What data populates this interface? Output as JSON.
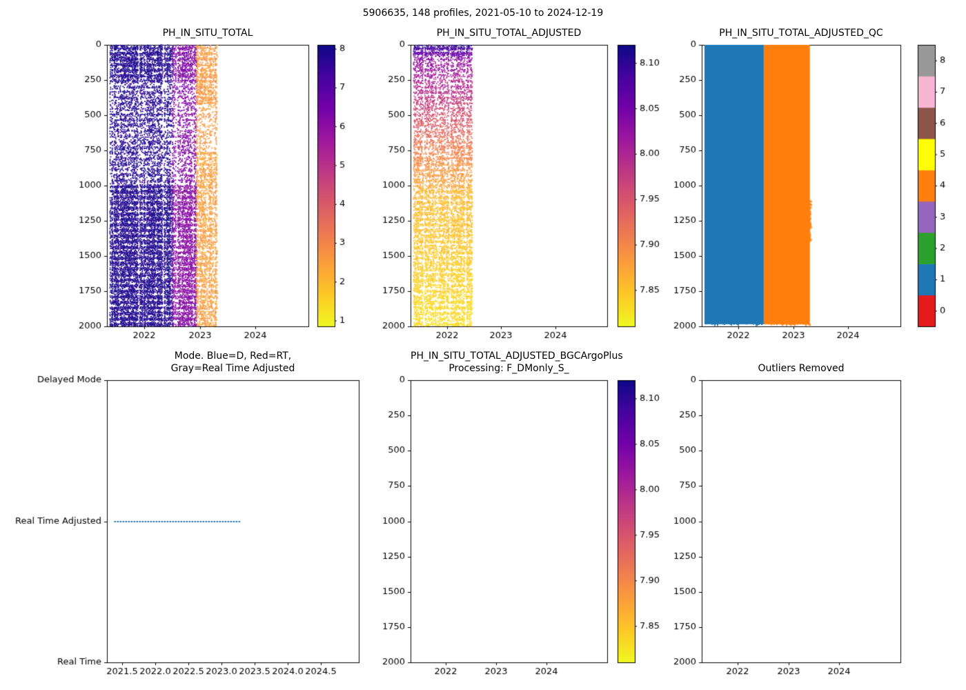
{
  "title": "5906635, 148 profiles, 2021-05-10 to 2024-12-19",
  "colors": {
    "background": "#ffffff",
    "axis": "#000000",
    "mode_line_blue": "#1f77b4"
  },
  "colormaps": {
    "plasma": [
      "#0d0887",
      "#46039f",
      "#7201a8",
      "#9c179e",
      "#bd3786",
      "#d8576b",
      "#ed7953",
      "#fb9f3a",
      "#fdca26",
      "#f0f921"
    ],
    "qc": [
      "#e41a1c",
      "#1f77b4",
      "#2ca02c",
      "#9467bd",
      "#ff7f0e",
      "#ffff00",
      "#8c564b",
      "#f7b6d2",
      "#999999"
    ]
  },
  "chart_data": [
    {
      "type": "scatter",
      "title": "PH_IN_SITU_TOTAL",
      "x_range": [
        2021.33,
        2024.95
      ],
      "x_ticks": [
        2022,
        2023,
        2024
      ],
      "x_tick_decimals": 0,
      "y_range": [
        0,
        2000
      ],
      "y_ticks": [
        0,
        250,
        500,
        750,
        1000,
        1250,
        1500,
        1750,
        2000
      ],
      "colorbar": {
        "kind": "gradient",
        "cmap": "plasma_r",
        "min": 0.85,
        "max": 8.1,
        "ticks": [
          1,
          2,
          3,
          4,
          5,
          6,
          7,
          8
        ],
        "decimals": 0
      },
      "profile_step_years": 0.0137,
      "depth_step_m": 10,
      "regions": [
        {
          "t0": 2021.38,
          "t1": 2022.5,
          "d0": 0,
          "d1": 260,
          "v_top": 7.85,
          "v_bot": 7.85,
          "noise": 0.35,
          "density": 0.82,
          "banded": true
        },
        {
          "t0": 2021.38,
          "t1": 2022.5,
          "d0": 260,
          "d1": 1000,
          "v_top": 7.8,
          "v_bot": 7.8,
          "noise": 0.4,
          "density": 0.5,
          "banded": true
        },
        {
          "t0": 2021.38,
          "t1": 2022.5,
          "d0": 1000,
          "d1": 2000,
          "v_top": 7.85,
          "v_bot": 7.85,
          "noise": 0.3,
          "density": 0.88,
          "banded": true
        },
        {
          "t0": 2022.5,
          "t1": 2022.93,
          "d0": 0,
          "d1": 260,
          "v_top": 6.2,
          "v_bot": 6.2,
          "noise": 0.5,
          "density": 0.75,
          "banded": true
        },
        {
          "t0": 2022.5,
          "t1": 2022.93,
          "d0": 260,
          "d1": 1000,
          "v_top": 6.2,
          "v_bot": 6.2,
          "noise": 0.5,
          "density": 0.42,
          "banded": true
        },
        {
          "t0": 2022.5,
          "t1": 2022.93,
          "d0": 1000,
          "d1": 2000,
          "v_top": 6.1,
          "v_bot": 6.1,
          "noise": 0.45,
          "density": 0.8,
          "banded": true
        },
        {
          "t0": 2022.93,
          "t1": 2023.3,
          "d0": 0,
          "d1": 420,
          "v_top": 2.6,
          "v_bot": 2.6,
          "noise": 0.55,
          "density": 0.72,
          "banded": true
        },
        {
          "t0": 2022.93,
          "t1": 2023.3,
          "d0": 420,
          "d1": 760,
          "v_top": 2.6,
          "v_bot": 2.6,
          "noise": 0.5,
          "density": 0.36,
          "banded": true
        },
        {
          "t0": 2022.93,
          "t1": 2023.3,
          "d0": 760,
          "d1": 2000,
          "v_top": 2.5,
          "v_bot": 2.5,
          "noise": 0.5,
          "density": 0.66,
          "banded": true
        }
      ]
    },
    {
      "type": "scatter",
      "title": "PH_IN_SITU_TOTAL_ADJUSTED",
      "x_range": [
        2021.33,
        2024.95
      ],
      "x_ticks": [
        2022,
        2023,
        2024
      ],
      "x_tick_decimals": 0,
      "y_range": [
        0,
        2000
      ],
      "y_ticks": [
        0,
        250,
        500,
        750,
        1000,
        1250,
        1500,
        1750,
        2000
      ],
      "colorbar": {
        "kind": "gradient",
        "cmap": "plasma_r",
        "min": 7.81,
        "max": 8.12,
        "ticks": [
          7.85,
          7.9,
          7.95,
          8.0,
          8.05,
          8.1
        ],
        "decimals": 2
      },
      "profile_step_years": 0.0137,
      "depth_step_m": 10,
      "regions": [
        {
          "t0": 2021.38,
          "t1": 2022.45,
          "d0": 0,
          "d1": 90,
          "v_top": 8.1,
          "v_bot": 8.04,
          "noise": 0.02,
          "density": 0.8,
          "banded": true
        },
        {
          "t0": 2021.38,
          "t1": 2022.45,
          "d0": 90,
          "d1": 420,
          "v_top": 8.03,
          "v_bot": 7.97,
          "noise": 0.025,
          "density": 0.5,
          "banded": true
        },
        {
          "t0": 2021.38,
          "t1": 2022.45,
          "d0": 420,
          "d1": 720,
          "v_top": 7.97,
          "v_bot": 7.91,
          "noise": 0.02,
          "density": 0.45,
          "banded": true
        },
        {
          "t0": 2021.38,
          "t1": 2022.45,
          "d0": 720,
          "d1": 1020,
          "v_top": 7.91,
          "v_bot": 7.87,
          "noise": 0.015,
          "density": 0.55,
          "banded": true
        },
        {
          "t0": 2021.38,
          "t1": 2022.45,
          "d0": 1020,
          "d1": 2000,
          "v_top": 7.86,
          "v_bot": 7.83,
          "noise": 0.012,
          "density": 0.62,
          "banded": true
        }
      ]
    },
    {
      "type": "scatter-qc",
      "title": "PH_IN_SITU_TOTAL_ADJUSTED_QC",
      "x_range": [
        2021.33,
        2024.95
      ],
      "x_ticks": [
        2022,
        2023,
        2024
      ],
      "x_tick_decimals": 0,
      "y_range": [
        0,
        2000
      ],
      "y_ticks": [
        0,
        250,
        500,
        750,
        1000,
        1250,
        1500,
        1750,
        2000
      ],
      "colorbar": {
        "kind": "discrete",
        "ticks": [
          0,
          1,
          2,
          3,
          4,
          5,
          6,
          7,
          8
        ]
      },
      "blocks": [
        {
          "t0": 2021.38,
          "t1": 2022.46,
          "d0": 0,
          "d1": 1985,
          "qc": 1,
          "ragged_bottom": true
        },
        {
          "t0": 2022.46,
          "t1": 2023.3,
          "d0": 0,
          "d1": 1985,
          "qc": 4,
          "ragged_bottom": true,
          "ragged_right": {
            "d0": 1100,
            "d1": 1400,
            "dt": 0.04
          }
        }
      ]
    },
    {
      "type": "categorical-line",
      "title": "Mode. Blue=D, Red=RT,\nGray=Real Time Adjusted",
      "x_range": [
        2021.27,
        2025.07
      ],
      "x_ticks": [
        2021.5,
        2022.0,
        2022.5,
        2023.0,
        2023.5,
        2024.0,
        2024.5
      ],
      "x_tick_decimals": 1,
      "y_categories": [
        "Delayed Mode",
        "Real Time Adjusted",
        "Real Time"
      ],
      "line": {
        "category_index": 1,
        "t0": 2021.38,
        "t1": 2023.28,
        "color": "#1f77b4"
      }
    },
    {
      "type": "scatter",
      "title": "PH_IN_SITU_TOTAL_ADJUSTED_BGCArgoPlus\nProcessing: F_DMonly_S_",
      "x_range": [
        2021.3,
        2025.2
      ],
      "x_ticks": [
        2022,
        2023,
        2024
      ],
      "x_tick_decimals": 0,
      "y_range": [
        0,
        2000
      ],
      "y_ticks": [
        0,
        250,
        500,
        750,
        1000,
        1250,
        1500,
        1750,
        2000
      ],
      "colorbar": {
        "kind": "gradient",
        "cmap": "plasma_r",
        "min": 7.81,
        "max": 8.12,
        "ticks": [
          7.85,
          7.9,
          7.95,
          8.0,
          8.05,
          8.1
        ],
        "decimals": 2
      },
      "regions": []
    },
    {
      "type": "scatter",
      "title": "Outliers Removed",
      "x_range": [
        2021.3,
        2025.2
      ],
      "x_ticks": [
        2022,
        2023,
        2024
      ],
      "x_tick_decimals": 0,
      "y_range": [
        0,
        2000
      ],
      "y_ticks": [
        0,
        250,
        500,
        750,
        1000,
        1250,
        1500,
        1750,
        2000
      ],
      "regions": []
    }
  ]
}
